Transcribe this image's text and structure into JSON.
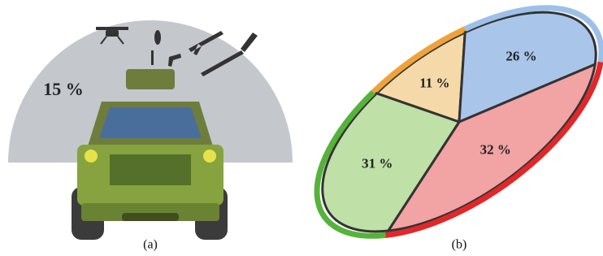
{
  "figure_a": {
    "label": "15 %",
    "caption": "(a)"
  },
  "chart_data": {
    "type": "pie",
    "caption": "(b)",
    "values": [
      11,
      26,
      32,
      31
    ],
    "value_labels": [
      "11 %",
      "26 %",
      "32 %",
      "31 %"
    ],
    "colors": [
      "#f5d9a8",
      "#a9c6ea",
      "#f2a3a3",
      "#bfe0a6"
    ],
    "edge_colors": [
      "#f0a23a",
      "#9cc0e8",
      "#e0282a",
      "#56b33a"
    ]
  }
}
